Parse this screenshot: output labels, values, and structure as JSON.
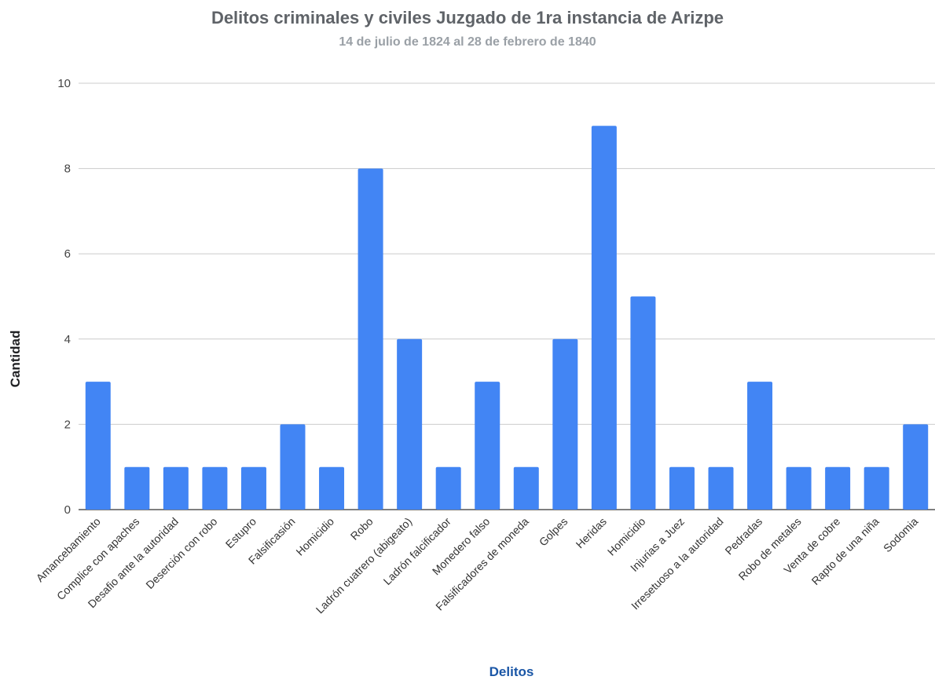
{
  "chart_data": {
    "type": "bar",
    "title": "Delitos criminales y civiles Juzgado de 1ra instancia de Arizpe",
    "subtitle": "14 de julio de 1824 al 28 de febrero de 1840",
    "xlabel": "Delitos",
    "ylabel": "Cantidad",
    "ylim": [
      0,
      10
    ],
    "yticks": [
      0,
      2,
      4,
      6,
      8,
      10
    ],
    "grid": true,
    "legend": "none",
    "bar_color": "#4285f4",
    "categories": [
      "Amancebamiento",
      "Complice con apaches",
      "Desafio ante la autoridad",
      "Deserción con robo",
      "Estupro",
      "Falsificasión",
      "Homicidio",
      "Robo",
      "Ladrón cuatrero (abigeato)",
      "Ladrón falcificador",
      "Monedero falso",
      "Falsificadores de moneda",
      "Golpes",
      "Heridas",
      "Homicidio",
      "Injurias a Juez",
      "Irresetuoso a la autoridad",
      "Pedradas",
      "Robo de metales",
      "Venta de cobre",
      "Rapto de una niña",
      "Sodomia"
    ],
    "values": [
      3,
      1,
      1,
      1,
      1,
      2,
      1,
      8,
      4,
      1,
      3,
      1,
      4,
      9,
      5,
      1,
      1,
      3,
      1,
      1,
      1,
      2
    ]
  }
}
